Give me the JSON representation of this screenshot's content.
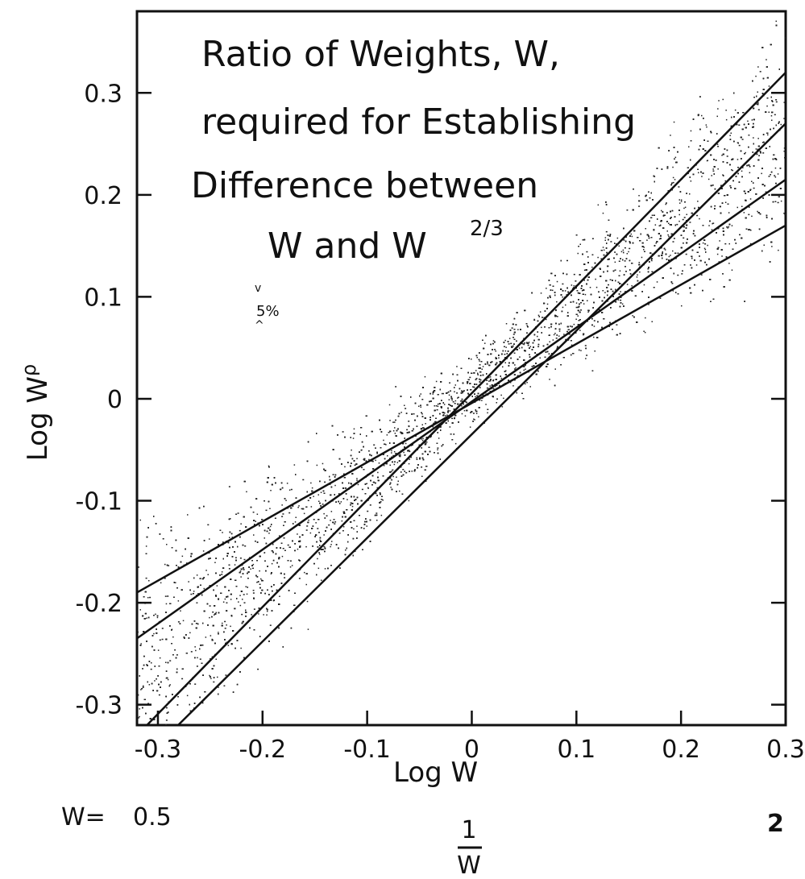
{
  "chart_data": {
    "type": "scatter",
    "title_lines": [
      "Ratio of Weights, W,",
      "required for Establishing",
      "Difference between",
      "W and W"
    ],
    "title_superscript": "2/3",
    "annotation": "5%",
    "xlabel": "Log W",
    "ylabel": "Log W",
    "ylabel_superscript": "ρ",
    "xlim": [
      -0.32,
      0.3
    ],
    "ylim": [
      -0.32,
      0.38
    ],
    "x_ticks": [
      -0.3,
      -0.2,
      -0.1,
      0,
      0.1,
      0.2,
      0.3
    ],
    "x_tick_labels": [
      "-0.3",
      "-0.2",
      "-0.1",
      "0",
      "0.1",
      "0.2",
      "0.3"
    ],
    "y_ticks": [
      -0.3,
      -0.2,
      -0.1,
      0,
      0.1,
      0.2,
      0.3
    ],
    "y_tick_labels": [
      "-0.3",
      "-0.2",
      "-0.1",
      "0",
      "0.1",
      "0.2",
      "0.3"
    ],
    "bottom_labels": {
      "w_prefix": "W=",
      "w_left": "0.5",
      "w_right": "2",
      "fraction_numerator": "1",
      "fraction_denominator": "W"
    },
    "series": [
      {
        "x": [
          -0.32,
          0.3
        ],
        "y": [
          -0.33,
          0.32
        ]
      },
      {
        "x": [
          -0.32,
          0.3
        ],
        "y": [
          -0.36,
          0.27
        ]
      },
      {
        "x": [
          -0.32,
          0.3
        ],
        "y": [
          -0.235,
          0.215
        ]
      },
      {
        "x": [
          -0.32,
          0.3
        ],
        "y": [
          -0.19,
          0.17
        ]
      }
    ],
    "scatter_band": {
      "slope_min": 0.59,
      "slope_max": 1.11,
      "offset_spread": 0.035,
      "point_count": 9000
    },
    "grid": false,
    "legend": "none"
  }
}
